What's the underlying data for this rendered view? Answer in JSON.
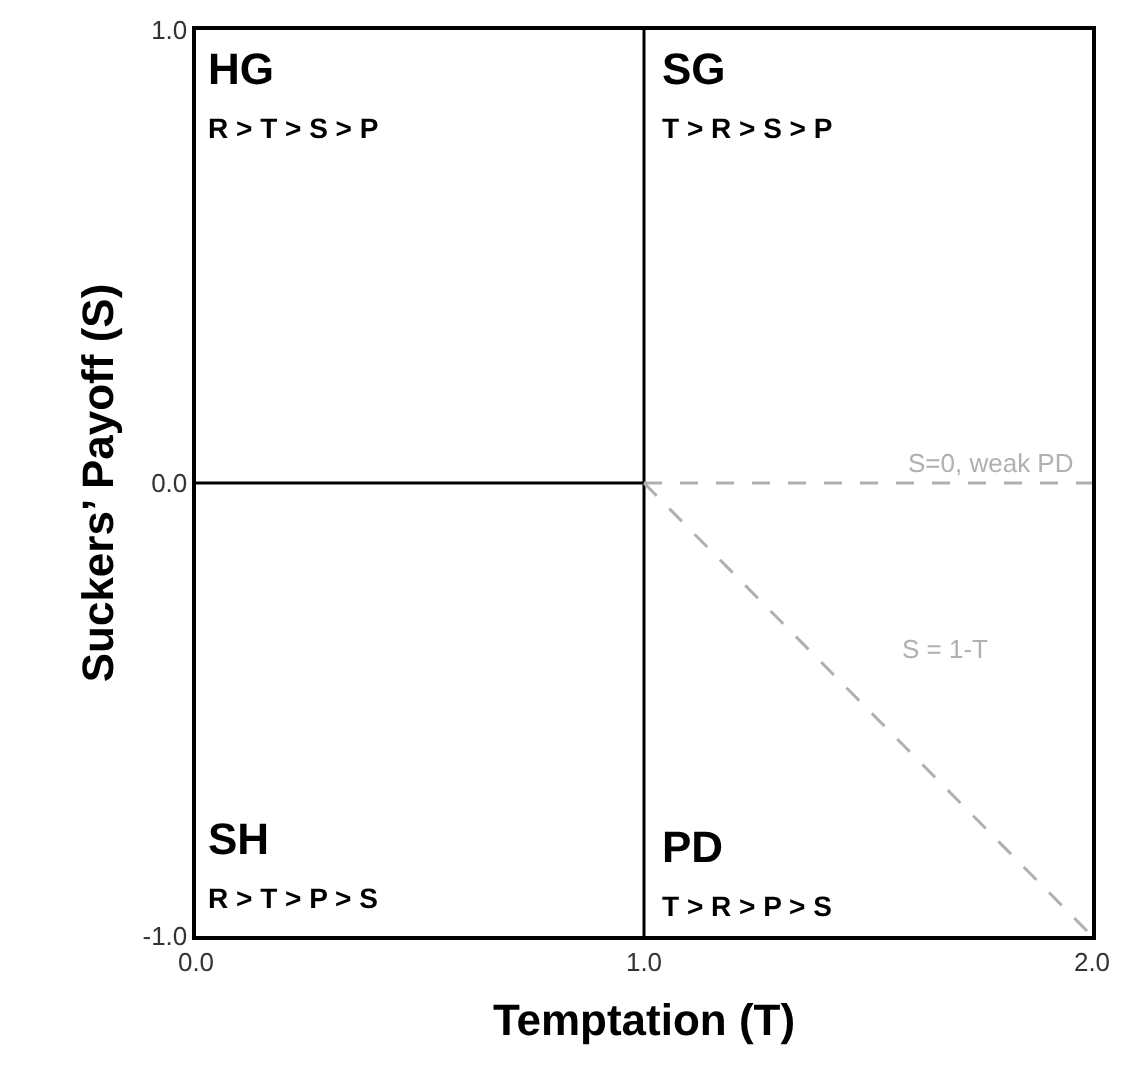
{
  "chart_data": {
    "type": "line",
    "xlabel": "Temptation (T)",
    "ylabel": "Suckers’ Payoff (S)",
    "xlim": [
      0,
      2
    ],
    "ylim": [
      -1,
      1
    ],
    "xticks": [
      {
        "value": 0,
        "label": "0.0"
      },
      {
        "value": 1,
        "label": "1.0"
      },
      {
        "value": 2,
        "label": "2.0"
      }
    ],
    "yticks": [
      {
        "value": -1,
        "label": "-1.0"
      },
      {
        "value": 0,
        "label": "0.0"
      },
      {
        "value": 1,
        "label": "1.0"
      }
    ],
    "series": [
      {
        "color": "#000000",
        "x": [
          0,
          1
        ],
        "values": [
          0,
          0
        ],
        "line_style": "solid"
      },
      {
        "name": "S=0, weak PD",
        "color": "#b0b0b0",
        "x": [
          1,
          2
        ],
        "values": [
          0,
          0
        ],
        "line_style": "dashed"
      },
      {
        "name": "S = 1-T",
        "color": "#b0b0b0",
        "x": [
          1,
          2
        ],
        "values": [
          0,
          -1
        ],
        "line_style": "dashed"
      }
    ],
    "ref_lines": [
      {
        "axis": "x",
        "value": 1,
        "color": "#000000",
        "line_style": "solid"
      }
    ],
    "annotations": [
      "HG",
      "R > T > S > P",
      "SG",
      "T > R > S > P",
      "SH",
      "R > T > P > S",
      "PD",
      "T > R > P > S"
    ],
    "grid": false,
    "legend": false,
    "marker": "none"
  }
}
